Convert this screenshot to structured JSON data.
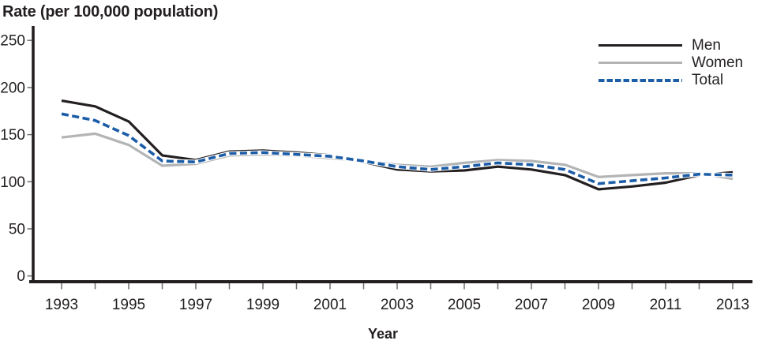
{
  "chart_data": {
    "type": "line",
    "title": "Rate (per 100,000 population)",
    "xlabel": "Year",
    "ylabel": "",
    "x": [
      1993,
      1994,
      1995,
      1996,
      1997,
      1998,
      1999,
      2000,
      2001,
      2002,
      2003,
      2004,
      2005,
      2006,
      2007,
      2008,
      2009,
      2010,
      2011,
      2012,
      2013
    ],
    "series": [
      {
        "name": "Men",
        "color": "#231f20",
        "style": "solid",
        "values": [
          186,
          180,
          164,
          128,
          123,
          132,
          133,
          131,
          128,
          121,
          113,
          111,
          112,
          116,
          113,
          107,
          92,
          95,
          99,
          107,
          110
        ]
      },
      {
        "name": "Women",
        "color": "#b2b4b6",
        "style": "solid",
        "values": [
          147,
          151,
          139,
          117,
          119,
          128,
          129,
          128,
          125,
          122,
          118,
          116,
          120,
          123,
          122,
          118,
          105,
          107,
          109,
          109,
          103
        ]
      },
      {
        "name": "Total",
        "color": "#1c5da8",
        "style": "dashed",
        "values": [
          172,
          165,
          149,
          122,
          121,
          130,
          131,
          129,
          127,
          122,
          116,
          113,
          116,
          120,
          118,
          113,
          98,
          101,
          104,
          108,
          107
        ]
      }
    ],
    "draw_order": [
      1,
      0,
      2
    ],
    "ylim": [
      0,
      250
    ],
    "yticks": [
      0,
      50,
      100,
      150,
      200,
      250
    ],
    "xticks_labeled": [
      1993,
      1995,
      1997,
      1999,
      2001,
      2003,
      2005,
      2007,
      2009,
      2011,
      2013
    ],
    "legend_position": "top-right",
    "grid": false
  },
  "colors": {
    "axis": "#231f20",
    "tick": "#6d6e71",
    "tick_label": "#231f20",
    "background": "#ffffff",
    "dash_casing": "#ffffff"
  }
}
